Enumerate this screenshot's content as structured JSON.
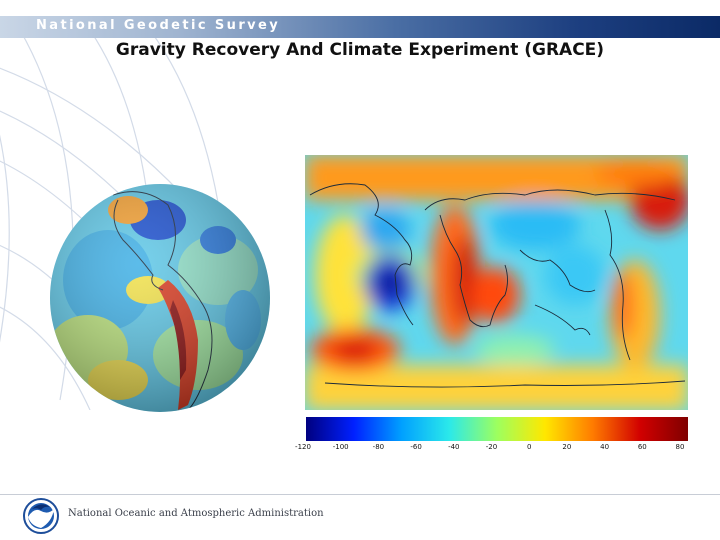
{
  "header": {
    "org_name": "National Geodetic Survey"
  },
  "slide": {
    "title": "Gravity Recovery And Climate Experiment (GRACE)"
  },
  "images": {
    "globe": "gravity-anomaly-globe",
    "map": "gravity-anomaly-world-map"
  },
  "colorbar": {
    "ticks": [
      "-120",
      "-100",
      "-80",
      "-60",
      "-40",
      "-20",
      "0",
      "20",
      "40",
      "60",
      "80"
    ],
    "colors": [
      "#00007f",
      "#0020ff",
      "#00a0ff",
      "#2be9ea",
      "#9dff5f",
      "#ffe800",
      "#ff7c00",
      "#d10000",
      "#7f0000"
    ]
  },
  "footer": {
    "agency": "National Oceanic and Atmospheric Administration",
    "logo": "noaa-logo"
  }
}
